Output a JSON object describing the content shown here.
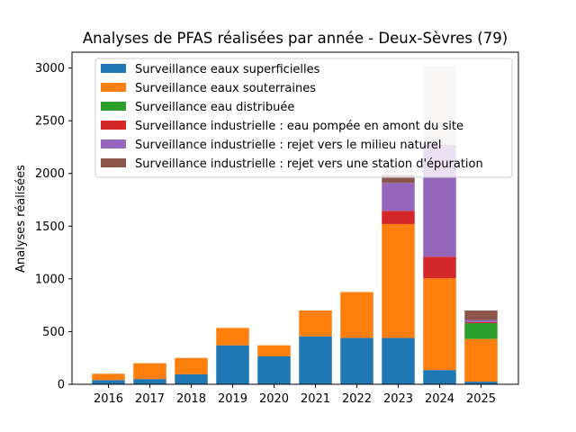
{
  "chart_data": {
    "type": "bar",
    "stacked": true,
    "title": "Analyses de PFAS réalisées par année - Deux-Sèvres (79)",
    "xlabel": "",
    "ylabel": "Analyses réalisées",
    "ylim": [
      0,
      3150
    ],
    "yticks": [
      0,
      500,
      1000,
      1500,
      2000,
      2500,
      3000
    ],
    "categories": [
      "2016",
      "2017",
      "2018",
      "2019",
      "2020",
      "2021",
      "2022",
      "2023",
      "2024",
      "2025"
    ],
    "legend_position": "top",
    "series": [
      {
        "name": "Surveillance eaux superficielles",
        "color": "#1f77b4",
        "values": [
          40,
          50,
          95,
          370,
          265,
          455,
          440,
          440,
          135,
          25
        ]
      },
      {
        "name": "Surveillance eaux souterraines",
        "color": "#ff7f0e",
        "values": [
          60,
          150,
          155,
          165,
          105,
          245,
          435,
          1080,
          870,
          405
        ]
      },
      {
        "name": "Surveillance eau distribuée",
        "color": "#2ca02c",
        "values": [
          0,
          0,
          0,
          0,
          0,
          0,
          0,
          0,
          0,
          150
        ]
      },
      {
        "name": "Surveillance industrielle : eau pompée en amont du site",
        "color": "#d62728",
        "values": [
          0,
          0,
          0,
          0,
          0,
          0,
          0,
          125,
          205,
          10
        ]
      },
      {
        "name": "Surveillance industrielle : rejet vers le milieu naturel",
        "color": "#9467bd",
        "values": [
          0,
          0,
          0,
          0,
          0,
          0,
          0,
          265,
          1060,
          20
        ]
      },
      {
        "name": "Surveillance industrielle : rejet vers une station d'épuration",
        "color": "#8c564b",
        "values": [
          0,
          0,
          0,
          0,
          0,
          0,
          0,
          75,
          0,
          90
        ]
      },
      {
        "name": "",
        "color": "#e2d2d0",
        "legend": false,
        "values": [
          0,
          0,
          0,
          0,
          0,
          0,
          0,
          95,
          750,
          0
        ]
      }
    ]
  }
}
